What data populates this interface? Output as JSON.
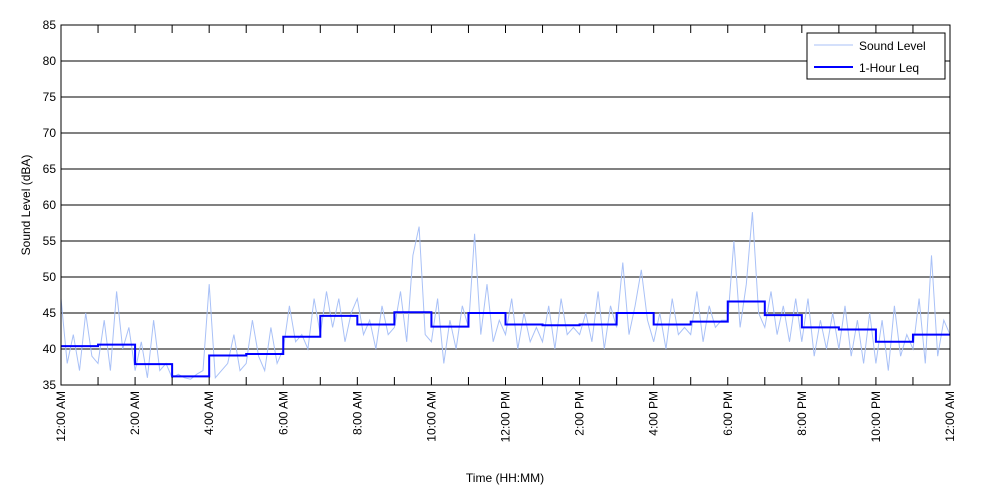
{
  "chart_data": {
    "type": "line",
    "title": "",
    "xlabel": "Time (HH:MM)",
    "ylabel": "Sound Level (dBA)",
    "ylim": [
      35,
      85
    ],
    "yticks": [
      35,
      40,
      45,
      50,
      55,
      60,
      65,
      70,
      75,
      80,
      85
    ],
    "xlim_hours": [
      0,
      24
    ],
    "xtick_labels": [
      "12:00 AM",
      "2:00 AM",
      "4:00 AM",
      "6:00 AM",
      "8:00 AM",
      "10:00 AM",
      "12:00 PM",
      "2:00 PM",
      "4:00 PM",
      "6:00 PM",
      "8:00 PM",
      "10:00 PM",
      "12:00 AM"
    ],
    "grid": "horizontal",
    "legend_position": "top-right",
    "colors": {
      "sound_level": "#a9c1f7",
      "leq": "#0000ff"
    },
    "series": [
      {
        "name": "Sound Level",
        "sample_interval_minutes": 10,
        "values": [
          47,
          38,
          42,
          37,
          45,
          39,
          38,
          44,
          37,
          48,
          40,
          43,
          37,
          41,
          36,
          44,
          37,
          38,
          36,
          36.5,
          36,
          35.8,
          36.5,
          37,
          49,
          36,
          37,
          38,
          42,
          37,
          38,
          44,
          39,
          37,
          43,
          38,
          40,
          46,
          41,
          42,
          40,
          47,
          42,
          48,
          43,
          47,
          41,
          45,
          47,
          42,
          44,
          40,
          46,
          42,
          43,
          48,
          41,
          53,
          57,
          42,
          41,
          47,
          38,
          44,
          40,
          46,
          43,
          56,
          42,
          49,
          41,
          44,
          42,
          47,
          40,
          45,
          41,
          43,
          41,
          46,
          40,
          47,
          42,
          43,
          42,
          45,
          41,
          48,
          40,
          46,
          43,
          52,
          42,
          46,
          51,
          44,
          41,
          45,
          40,
          47,
          42,
          43,
          42,
          48,
          41,
          46,
          43,
          44,
          44,
          55,
          43,
          49,
          59,
          45,
          43,
          48,
          42,
          46,
          41,
          47,
          41,
          47,
          39,
          44,
          40,
          45,
          40,
          46,
          39,
          44,
          38,
          45,
          38,
          44,
          37,
          46,
          39,
          42,
          40,
          47,
          38,
          53,
          39,
          44,
          42
        ]
      },
      {
        "name": "1-Hour Leq",
        "interval_hours": 1,
        "values": [
          40.4,
          40.6,
          37.9,
          36.2,
          39.1,
          39.3,
          41.7,
          44.6,
          43.4,
          45.1,
          43.1,
          45.0,
          43.4,
          43.3,
          43.4,
          45.0,
          43.4,
          43.8,
          46.6,
          44.7,
          43.0,
          42.7,
          41.0,
          42.0
        ]
      }
    ]
  }
}
